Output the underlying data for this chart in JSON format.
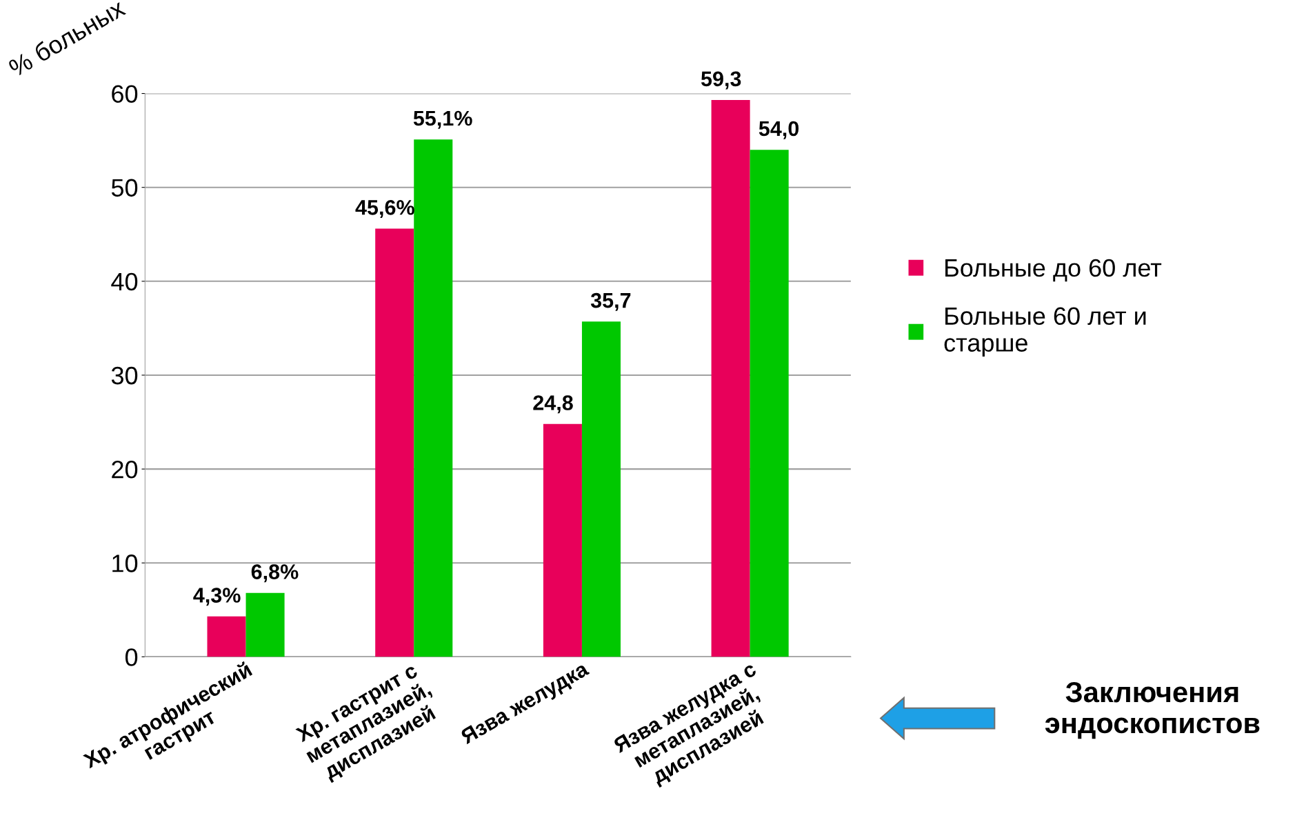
{
  "chart_data": {
    "type": "bar",
    "ylabel": "% больных",
    "categories": [
      "Хр. атрофический\nгастрит",
      "Хр. гастрит с\nметаплазией,\nдисплазией",
      "Язва желудка",
      "Язва желудка с\nметаплазией,\nдисплазией"
    ],
    "series": [
      {
        "name": "Больные до 60 лет",
        "color": "#e8005a",
        "values": [
          4.3,
          45.6,
          24.8,
          59.3
        ],
        "value_labels": [
          "4,3%",
          "45,6%",
          "24,8",
          "59,3"
        ]
      },
      {
        "name": "Больные 60 лет и\nстарше",
        "color": "#00c800",
        "values": [
          6.8,
          55.1,
          35.7,
          54.0
        ],
        "value_labels": [
          "6,8%",
          "55,1%",
          "35,7",
          "54,0"
        ]
      }
    ],
    "ylim": [
      0,
      60
    ],
    "yticks": [
      0,
      10,
      20,
      30,
      40,
      50,
      60
    ],
    "grid": "y",
    "legend": "right",
    "annotations": [
      "Заключения\nэндоскопистов"
    ]
  }
}
